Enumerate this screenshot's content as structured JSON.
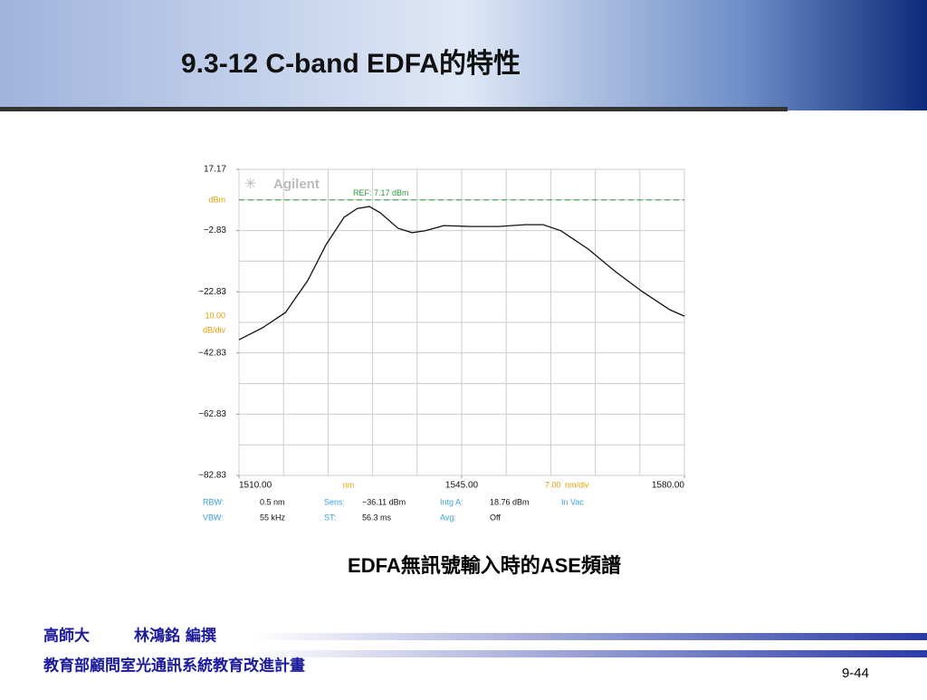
{
  "slide": {
    "title": "9.3-12 C-band EDFA的特性",
    "caption": "EDFA無訊號輸入時的ASE頻譜",
    "footer": {
      "school": "高師大",
      "author": "林鴻銘 編撰",
      "program": "教育部顧問室光通訊系統教育改進計畫",
      "page": "9-44"
    }
  },
  "chart_data": {
    "type": "line",
    "brand": "Agilent",
    "x": [
      1510,
      1513.7,
      1517.3,
      1520.8,
      1523.7,
      1526.5,
      1528.6,
      1530.5,
      1532.2,
      1535,
      1537.2,
      1539.3,
      1542.2,
      1546.4,
      1550.7,
      1555,
      1557.8,
      1560.6,
      1564.9,
      1569.2,
      1573.4,
      1577.7,
      1580
    ],
    "series": [
      {
        "color": "#111111",
        "values": [
          -38.5,
          -34.6,
          -29.6,
          -19.2,
          -7.4,
          1.5,
          4.4,
          5.0,
          3.0,
          -2.1,
          -3.5,
          -2.9,
          -1.2,
          -1.5,
          -1.5,
          -0.9,
          -0.9,
          -2.9,
          -8.9,
          -16.3,
          -22.8,
          -28.7,
          -30.8
        ]
      }
    ],
    "xlim": [
      1510,
      1580
    ],
    "ylim": [
      -82.83,
      17.17
    ],
    "xticks": [
      {
        "value": 1510,
        "label": "1510.00"
      },
      {
        "value": 1545,
        "label": "1545.00"
      },
      {
        "value": 1580,
        "label": "1580.00"
      }
    ],
    "yticks": [
      17.17,
      {
        "value": -2.83,
        "label": "−2.83"
      },
      {
        "value": -22.83,
        "label": "−22.83"
      },
      {
        "value": -42.83,
        "label": "−42.83"
      },
      {
        "value": -62.83,
        "label": "−62.83"
      },
      {
        "value": -82.83,
        "label": "−82.83"
      }
    ],
    "x_unit": "nm",
    "y_unit": "dBm",
    "xdiv": {
      "value": 7,
      "label": "7.00"
    },
    "xdiv_unit": "nm/div",
    "ydiv": {
      "value": 10,
      "label": "10.00"
    },
    "ydiv_unit": "dB/div",
    "ref": {
      "value": 7.17,
      "label": "REF: 7.17 dBm",
      "color": "#2e9a3a"
    },
    "grid": true,
    "info": [
      [
        "RBW:",
        "0.5 nm",
        "Sens:",
        "−36.11 dBm",
        "Intg A:",
        "18.76 dBm",
        "In Vac"
      ],
      [
        "VBW:",
        "55 kHz",
        "ST:",
        "56.3 ms",
        "Avg:",
        "Off"
      ]
    ]
  }
}
